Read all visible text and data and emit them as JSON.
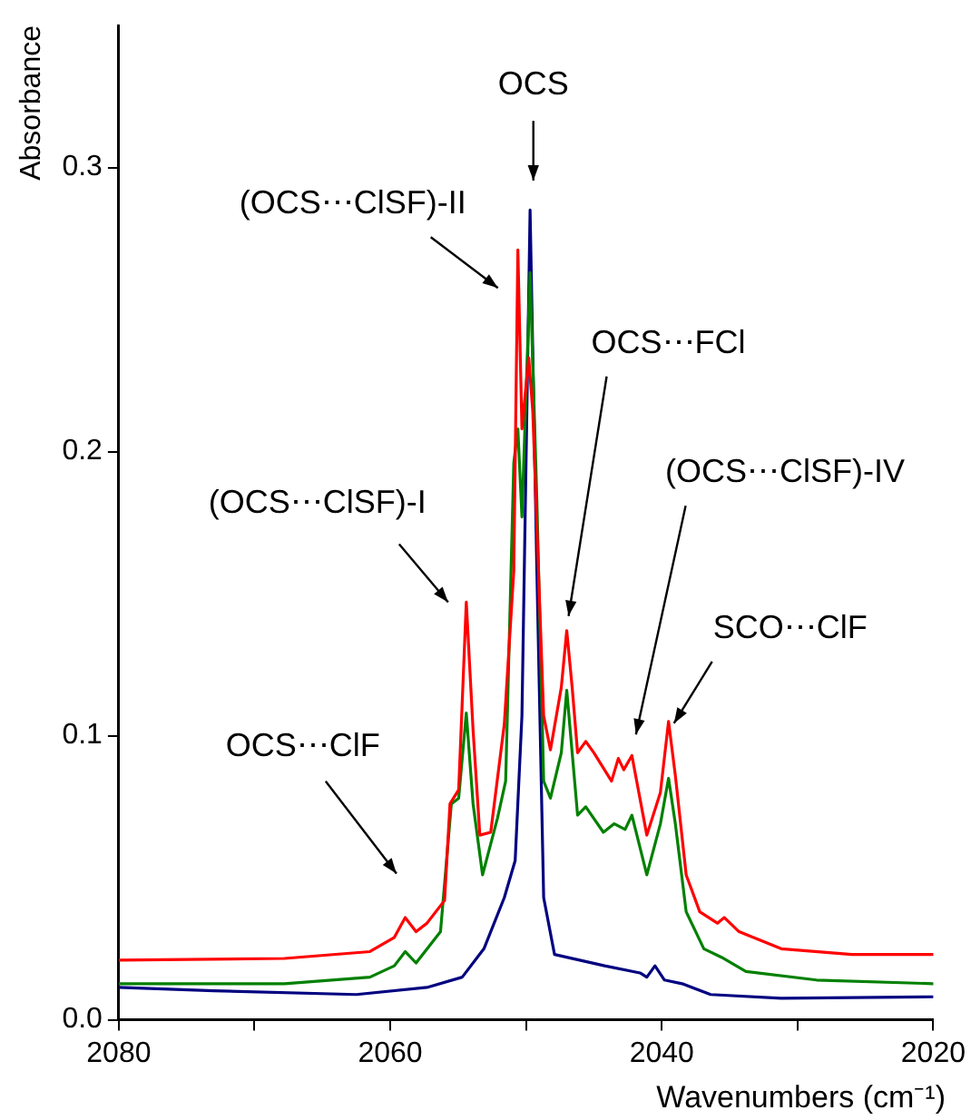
{
  "chart_data": {
    "type": "line",
    "xlabel": "Wavenumbers (cm⁻¹)",
    "ylabel": "Absorbance",
    "xlim": [
      2080,
      2020
    ],
    "xticks": [
      2080,
      {
        "value": 2070,
        "label": null
      },
      2060,
      {
        "value": 2050,
        "label": null
      },
      2040,
      {
        "value": 2030,
        "label": null
      },
      2020
    ],
    "ylim": [
      0,
      0.35
    ],
    "yticks": [
      {
        "value": 0,
        "label": "0.0"
      },
      0.1,
      0.2,
      0.3
    ],
    "grid": false,
    "legend": false,
    "marker": "none",
    "line_style": "solid",
    "series": [
      {
        "color": "#ff0000",
        "x": [
          2080,
          2067.8,
          2061.5,
          2059.7,
          2058.9,
          2058.1,
          2057.3,
          2056.0,
          2055.6,
          2054.96,
          2054.4,
          2053.9,
          2053.4,
          2052.6,
          2051.6,
          2050.9,
          2050.6,
          2050.3,
          2049.8,
          2049.5,
          2048.7,
          2048.2,
          2047.4,
          2047.0,
          2046.6,
          2046.2,
          2045.6,
          2045.0,
          2043.7,
          2043.2,
          2042.8,
          2042.2,
          2041.1,
          2040.1,
          2039.5,
          2039.0,
          2038.2,
          2037.2,
          2035.9,
          2035.4,
          2034.3,
          2031.2,
          2026.0,
          2020
        ],
        "values": [
          0.021,
          0.0216,
          0.024,
          0.029,
          0.036,
          0.031,
          0.034,
          0.042,
          0.076,
          0.081,
          0.147,
          0.102,
          0.065,
          0.066,
          0.104,
          0.158,
          0.271,
          0.208,
          0.233,
          0.214,
          0.107,
          0.095,
          0.117,
          0.137,
          0.117,
          0.094,
          0.098,
          0.094,
          0.084,
          0.092,
          0.088,
          0.093,
          0.065,
          0.08,
          0.105,
          0.086,
          0.051,
          0.038,
          0.034,
          0.036,
          0.031,
          0.025,
          0.023,
          0.023
        ]
      },
      {
        "color": "#008000",
        "x": [
          2080,
          2067.8,
          2061.5,
          2059.7,
          2058.9,
          2058.1,
          2056.3,
          2055.5,
          2054.96,
          2054.4,
          2053.9,
          2053.2,
          2052.1,
          2051.5,
          2050.9,
          2050.6,
          2050.3,
          2049.7,
          2049.2,
          2048.7,
          2048.2,
          2047.4,
          2047.0,
          2046.6,
          2046.2,
          2045.6,
          2044.3,
          2043.5,
          2042.7,
          2042.2,
          2041.1,
          2040.1,
          2039.5,
          2039.0,
          2038.2,
          2036.9,
          2035.6,
          2033.8,
          2028.6,
          2020
        ],
        "values": [
          0.0127,
          0.0127,
          0.015,
          0.019,
          0.024,
          0.02,
          0.031,
          0.076,
          0.078,
          0.108,
          0.076,
          0.051,
          0.071,
          0.084,
          0.196,
          0.208,
          0.177,
          0.263,
          0.183,
          0.084,
          0.078,
          0.094,
          0.116,
          0.094,
          0.072,
          0.075,
          0.066,
          0.069,
          0.067,
          0.072,
          0.051,
          0.069,
          0.085,
          0.069,
          0.038,
          0.025,
          0.022,
          0.017,
          0.014,
          0.0127
        ]
      },
      {
        "color": "#000080",
        "x": [
          2080,
          2073,
          2062.5,
          2057.3,
          2054.7,
          2053.1,
          2051.6,
          2050.8,
          2050.3,
          2049.7,
          2049.2,
          2048.7,
          2047.9,
          2044.2,
          2041.6,
          2041.1,
          2040.5,
          2039.8,
          2038.5,
          2036.4,
          2031.2,
          2020
        ],
        "values": [
          0.0114,
          0.0102,
          0.0089,
          0.0114,
          0.015,
          0.025,
          0.043,
          0.056,
          0.107,
          0.285,
          0.158,
          0.043,
          0.023,
          0.019,
          0.0165,
          0.015,
          0.019,
          0.014,
          0.0127,
          0.0089,
          0.0076,
          0.0081
        ]
      }
    ],
    "annotations": [
      "OCS",
      {
        "text": "(OCS⋯ClSF)-II",
        "x": 2050.6,
        "y": 0.271
      },
      {
        "text": "OCS⋯FCl",
        "x": 2047.0,
        "y": 0.137
      },
      {
        "text": "(OCS⋯ClSF)-I",
        "x": 2054.4,
        "y": 0.147
      },
      "(OCS⋯ClSF)-IV",
      {
        "text": "SCO⋯ClF",
        "x": 2039.5,
        "y": 0.105
      },
      "OCS⋯ClF"
    ]
  }
}
